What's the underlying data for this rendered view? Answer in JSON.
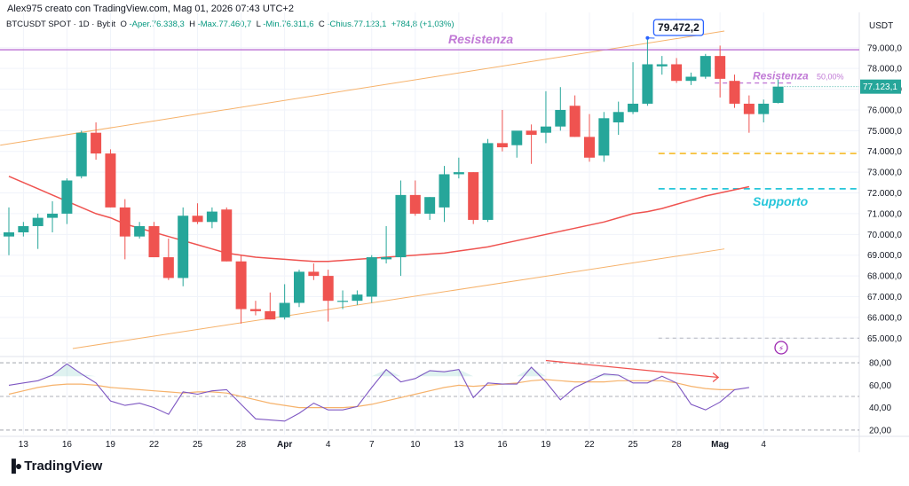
{
  "header": {
    "credit": "Alex975 creato con TradingView.com, Mag 01, 2026 07:43 UTC+2"
  },
  "legend": {
    "symbol": "BTCUSDT SPOT · 1D · Bybit",
    "open_label": "O",
    "open": "-Aper.76.338,3",
    "high_label": "H",
    "high": "-Max.77.460,7",
    "low_label": "L",
    "low": "-Min.76.311,6",
    "close_label": "C",
    "close": "-Chius.77.123,1",
    "change": "+784,8 (+1,03%)"
  },
  "branding": {
    "logo_text": "TradingView"
  },
  "colors": {
    "up": "#26a69a",
    "down": "#ef5350",
    "ma": "#ef5350",
    "resistance": "#c17ad6",
    "support": "#26c6da",
    "channel": "#f6b26b",
    "rsi": "#7e57c2",
    "rsi_ma": "#f6b26b",
    "dashed_yellow": "#f6c343"
  },
  "chart_data": {
    "type": "candlestick",
    "price_axis_unit": "USDT",
    "price_ticks": [
      "79.000,0",
      "78.000,0",
      "77.000,0",
      "76.000,0",
      "75.000,0",
      "74.000,0",
      "73.000,0",
      "72.000,0",
      "71.000,0",
      "70.000,0",
      "69.000,0",
      "68.000,0",
      "67.000,0",
      "66.000,0",
      "65.000,0"
    ],
    "price_range": [
      64200,
      80700
    ],
    "last_price_label": "77.123,1",
    "x_ticks": [
      {
        "label": "13",
        "i": 1
      },
      {
        "label": "16",
        "i": 4
      },
      {
        "label": "19",
        "i": 7
      },
      {
        "label": "22",
        "i": 10
      },
      {
        "label": "25",
        "i": 13
      },
      {
        "label": "28",
        "i": 16
      },
      {
        "label": "Apr",
        "i": 19
      },
      {
        "label": "4",
        "i": 22
      },
      {
        "label": "7",
        "i": 25
      },
      {
        "label": "10",
        "i": 28
      },
      {
        "label": "13",
        "i": 31
      },
      {
        "label": "16",
        "i": 34
      },
      {
        "label": "19",
        "i": 37
      },
      {
        "label": "22",
        "i": 40
      },
      {
        "label": "25",
        "i": 43
      },
      {
        "label": "28",
        "i": 46
      },
      {
        "label": "Mag",
        "i": 49
      },
      {
        "label": "4",
        "i": 52
      }
    ],
    "candles": [
      {
        "o": 69900,
        "h": 71300,
        "l": 69000,
        "c": 70100
      },
      {
        "o": 70100,
        "h": 70600,
        "l": 69900,
        "c": 70400
      },
      {
        "o": 70400,
        "h": 71000,
        "l": 69300,
        "c": 70800
      },
      {
        "o": 70800,
        "h": 71600,
        "l": 70100,
        "c": 71000
      },
      {
        "o": 71000,
        "h": 72700,
        "l": 70500,
        "c": 72600
      },
      {
        "o": 72800,
        "h": 75000,
        "l": 72700,
        "c": 74900
      },
      {
        "o": 74900,
        "h": 75400,
        "l": 73600,
        "c": 73900
      },
      {
        "o": 73900,
        "h": 74100,
        "l": 71300,
        "c": 71300
      },
      {
        "o": 71300,
        "h": 71700,
        "l": 68800,
        "c": 69900
      },
      {
        "o": 69900,
        "h": 70600,
        "l": 69800,
        "c": 70400
      },
      {
        "o": 70400,
        "h": 70600,
        "l": 68900,
        "c": 68900
      },
      {
        "o": 68900,
        "h": 69800,
        "l": 67800,
        "c": 67900
      },
      {
        "o": 67900,
        "h": 71300,
        "l": 67500,
        "c": 70900
      },
      {
        "o": 70900,
        "h": 71500,
        "l": 70500,
        "c": 70600
      },
      {
        "o": 70600,
        "h": 71300,
        "l": 70300,
        "c": 71100
      },
      {
        "o": 71200,
        "h": 71300,
        "l": 68700,
        "c": 68700
      },
      {
        "o": 68700,
        "h": 69000,
        "l": 65700,
        "c": 66400
      },
      {
        "o": 66400,
        "h": 66800,
        "l": 66100,
        "c": 66300
      },
      {
        "o": 66300,
        "h": 67200,
        "l": 65900,
        "c": 65900
      },
      {
        "o": 66000,
        "h": 67600,
        "l": 65900,
        "c": 66700
      },
      {
        "o": 66700,
        "h": 68300,
        "l": 66500,
        "c": 68200
      },
      {
        "o": 68200,
        "h": 68600,
        "l": 67800,
        "c": 68000
      },
      {
        "o": 68000,
        "h": 68300,
        "l": 65800,
        "c": 66800
      },
      {
        "o": 66800,
        "h": 67300,
        "l": 66400,
        "c": 66800
      },
      {
        "o": 66800,
        "h": 67300,
        "l": 66600,
        "c": 67100
      },
      {
        "o": 67000,
        "h": 69000,
        "l": 66700,
        "c": 68900
      },
      {
        "o": 68800,
        "h": 70400,
        "l": 68600,
        "c": 68900
      },
      {
        "o": 68900,
        "h": 72600,
        "l": 68000,
        "c": 71900
      },
      {
        "o": 71900,
        "h": 72600,
        "l": 70900,
        "c": 71000
      },
      {
        "o": 71000,
        "h": 71800,
        "l": 70700,
        "c": 71800
      },
      {
        "o": 71300,
        "h": 73300,
        "l": 70600,
        "c": 72900
      },
      {
        "o": 72900,
        "h": 73700,
        "l": 72700,
        "c": 73000
      },
      {
        "o": 73000,
        "h": 73000,
        "l": 70500,
        "c": 70700
      },
      {
        "o": 70700,
        "h": 74600,
        "l": 70600,
        "c": 74400
      },
      {
        "o": 74400,
        "h": 76000,
        "l": 74000,
        "c": 74200
      },
      {
        "o": 74300,
        "h": 74900,
        "l": 73700,
        "c": 75000
      },
      {
        "o": 75000,
        "h": 75300,
        "l": 73400,
        "c": 74800
      },
      {
        "o": 74900,
        "h": 76900,
        "l": 74400,
        "c": 75200
      },
      {
        "o": 75200,
        "h": 77100,
        "l": 75000,
        "c": 76000
      },
      {
        "o": 76200,
        "h": 76700,
        "l": 74700,
        "c": 74700
      },
      {
        "o": 74700,
        "h": 75800,
        "l": 73500,
        "c": 73700
      },
      {
        "o": 73800,
        "h": 75900,
        "l": 73500,
        "c": 75600
      },
      {
        "o": 75400,
        "h": 76400,
        "l": 74800,
        "c": 75900
      },
      {
        "o": 75900,
        "h": 78300,
        "l": 75800,
        "c": 76300
      },
      {
        "o": 76300,
        "h": 79400,
        "l": 76200,
        "c": 78200
      },
      {
        "o": 78100,
        "h": 78600,
        "l": 77700,
        "c": 78200
      },
      {
        "o": 78200,
        "h": 78500,
        "l": 77300,
        "c": 77400
      },
      {
        "o": 77400,
        "h": 77800,
        "l": 77200,
        "c": 77600
      },
      {
        "o": 77600,
        "h": 78700,
        "l": 77500,
        "c": 78600
      },
      {
        "o": 78600,
        "h": 79100,
        "l": 76600,
        "c": 77500
      },
      {
        "o": 77400,
        "h": 77700,
        "l": 76100,
        "c": 76300
      },
      {
        "o": 76300,
        "h": 76700,
        "l": 74900,
        "c": 75800
      },
      {
        "o": 75800,
        "h": 76500,
        "l": 75400,
        "c": 76300
      },
      {
        "o": 76338,
        "h": 77461,
        "l": 76312,
        "c": 77123
      }
    ],
    "moving_average": [
      72800,
      72500,
      72200,
      71900,
      71600,
      71300,
      71000,
      70800,
      70500,
      70300,
      70100,
      69900,
      69700,
      69500,
      69300,
      69100,
      69000,
      68900,
      68850,
      68800,
      68750,
      68700,
      68700,
      68750,
      68800,
      68850,
      68900,
      68950,
      69000,
      69050,
      69100,
      69200,
      69300,
      69400,
      69550,
      69700,
      69850,
      70000,
      70150,
      70300,
      70450,
      70600,
      70800,
      71000,
      71100,
      71250,
      71450,
      71650,
      71850,
      72000,
      72150,
      72300
    ],
    "annotations": {
      "resistance_label": "Resistenza",
      "resistance_price": 78900,
      "resistance2_label": "Resistenza",
      "resistance2_price": 77300,
      "resistance2_pct": "50,00%",
      "support_label": "Supporto",
      "support_price": 72200,
      "yellow_level_price": 73900,
      "lower_dashed_price": 65000,
      "peak_label": "79.472,2",
      "channel_upper": [
        {
          "i": 0,
          "p": 74300
        },
        {
          "i": 49,
          "p": 79800
        }
      ],
      "channel_lower": [
        {
          "i": 5,
          "p": 64500
        },
        {
          "i": 49,
          "p": 69300
        }
      ]
    },
    "rsi": {
      "ticks": [
        "80,00",
        "60,00",
        "40,00",
        "20,00"
      ],
      "range": [
        16,
        84
      ],
      "band_upper": 80,
      "band_mid": 50,
      "band_lower": 20,
      "values": [
        60,
        62,
        64,
        69,
        79,
        70,
        62,
        46,
        42,
        44,
        40,
        34,
        54,
        52,
        55,
        56,
        43,
        30,
        29,
        28,
        35,
        44,
        38,
        38,
        41,
        58,
        74,
        63,
        66,
        73,
        72,
        74,
        49,
        62,
        61,
        61,
        76,
        63,
        47,
        58,
        64,
        70,
        69,
        62,
        62,
        68,
        62,
        43,
        38,
        45,
        56,
        58
      ],
      "ma_values": [
        52,
        55,
        58,
        60,
        61,
        61,
        60,
        58,
        57,
        56,
        55,
        54,
        53,
        54,
        54,
        53,
        50,
        47,
        44,
        42,
        40,
        40,
        40,
        40,
        41,
        43,
        46,
        49,
        52,
        55,
        58,
        60,
        59,
        60,
        61,
        62,
        64,
        65,
        64,
        63,
        63,
        63,
        64,
        64,
        64,
        64,
        62,
        59,
        57,
        56,
        56
      ],
      "divergence_line": [
        {
          "i": 37,
          "v": 82
        },
        {
          "i": 49,
          "v": 67
        }
      ]
    }
  }
}
